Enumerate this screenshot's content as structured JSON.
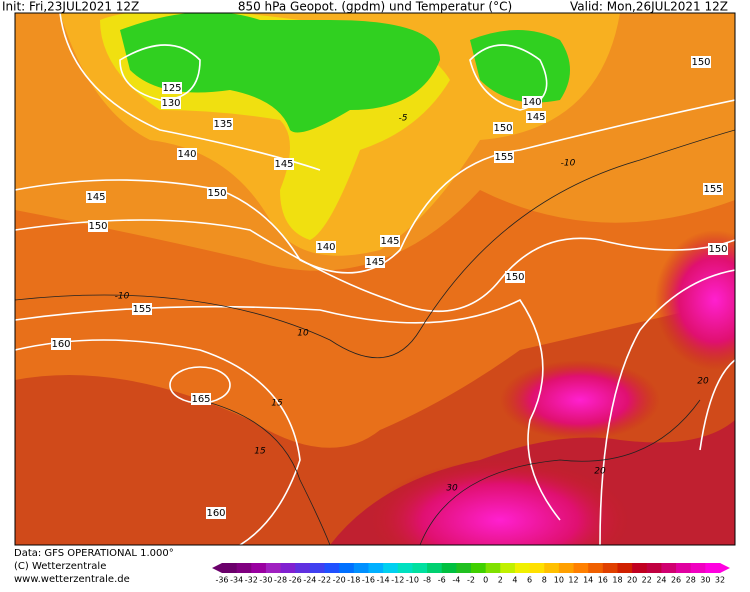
{
  "header": {
    "init": "Init: Fri,23JUL2021 12Z",
    "title": "850 hPa Geopot. (gpdm) und Temperatur (°C)",
    "valid": "Valid: Mon,26JUL2021 12Z"
  },
  "geopotential_labels": [
    125,
    130,
    135,
    140,
    145,
    150,
    150,
    145,
    140,
    145,
    145,
    150,
    155,
    160,
    165,
    160,
    140,
    145,
    150,
    155,
    150,
    155,
    150
  ],
  "temperature_labels": [
    -10,
    -5,
    10,
    15,
    15,
    20,
    20,
    30,
    -10
  ],
  "footer": {
    "data": "Data: GFS OPERATIONAL 1.000°",
    "copyright": "(C) Wetterzentrale",
    "url": "www.wetterzentrale.de"
  },
  "colorbar": {
    "ticks": [
      -36,
      -34,
      -32,
      -30,
      -28,
      -26,
      -24,
      -22,
      -20,
      -18,
      -16,
      -14,
      -12,
      -10,
      -8,
      -6,
      -4,
      -2,
      0,
      2,
      4,
      6,
      8,
      10,
      12,
      14,
      16,
      18,
      20,
      22,
      24,
      26,
      28,
      30,
      32
    ],
    "colors": [
      "#6b006b",
      "#800080",
      "#9900a0",
      "#a020c0",
      "#8020d0",
      "#6030e0",
      "#4040f0",
      "#2050ff",
      "#0070ff",
      "#0090ff",
      "#00b0ff",
      "#00d0f0",
      "#00e0c0",
      "#00e0a0",
      "#00d070",
      "#00c040",
      "#20c020",
      "#40d000",
      "#80e000",
      "#c0f000",
      "#f0f000",
      "#ffe000",
      "#ffc000",
      "#ffa000",
      "#ff8000",
      "#f06000",
      "#e04000",
      "#d02000",
      "#c00020",
      "#c00040",
      "#d00070",
      "#e000a0",
      "#f000c0",
      "#ff00e0"
    ]
  }
}
